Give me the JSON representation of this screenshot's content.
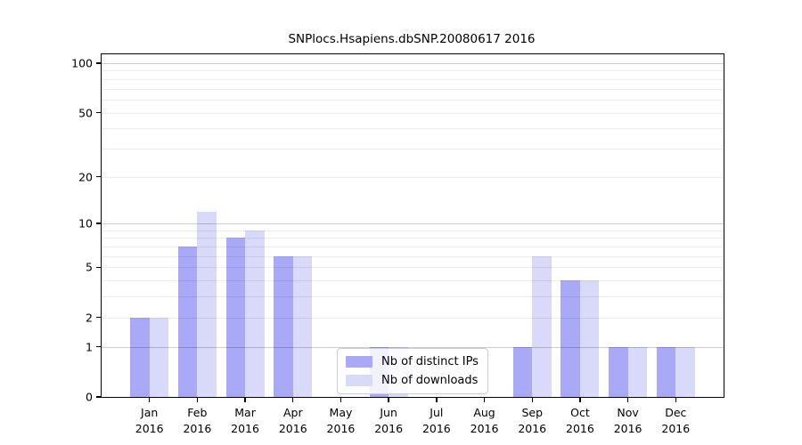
{
  "chart_data": {
    "type": "bar",
    "title": "SNPlocs.Hsapiens.dbSNP.20080617 2016",
    "x": {
      "categories": [
        "Jan",
        "Feb",
        "Mar",
        "Apr",
        "May",
        "Jun",
        "Jul",
        "Aug",
        "Sep",
        "Oct",
        "Nov",
        "Dec"
      ],
      "year": "2016"
    },
    "y_axis": {
      "scale": "log1p",
      "ticks": [
        0,
        1,
        2,
        5,
        10,
        20,
        50,
        100
      ],
      "major_grid": [
        1,
        10,
        100
      ],
      "minor_grid": [
        2,
        3,
        4,
        5,
        6,
        7,
        8,
        9,
        20,
        30,
        40,
        50,
        60,
        70,
        80,
        90
      ],
      "min": 0,
      "max": 100,
      "grid": "on"
    },
    "series": [
      {
        "name": "Nb of distinct IPs",
        "color": "#a9a9f8",
        "values": [
          2,
          7,
          8,
          6,
          0,
          1,
          0,
          0,
          1,
          4,
          1,
          1
        ]
      },
      {
        "name": "Nb of downloads",
        "color": "#d9d9fa",
        "values": [
          2,
          12,
          9,
          6,
          0,
          1,
          0,
          0,
          6,
          4,
          1,
          1
        ]
      }
    ],
    "legend": {
      "position": "lower-center"
    }
  },
  "colors": {
    "background": "#ffffff",
    "frame": "#000000",
    "text": "#000000",
    "legend_border": "#cccccc"
  }
}
